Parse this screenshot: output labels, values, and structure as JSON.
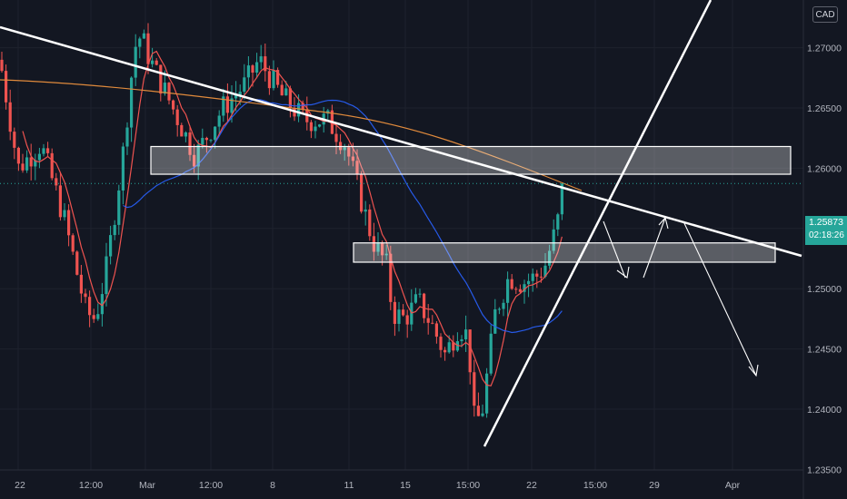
{
  "chart_data": {
    "type": "candlestick",
    "instrument_currency": "CAD",
    "y_range": [
      1.235,
      1.28
    ],
    "y_ticks": [
      "1.23500",
      "1.24000",
      "1.24500",
      "1.25000",
      "1.25500",
      "1.26000",
      "1.26500",
      "1.27000",
      "1.27500",
      "1.28000"
    ],
    "x_tick_labels": [
      "22",
      "12:00",
      "Mar",
      "12:00",
      "8",
      "11",
      "15",
      "15:00",
      "22",
      "15:00",
      "29",
      "Apr"
    ],
    "last_price": "1.25873",
    "countdown": "02:18:26",
    "key_points": {
      "start_high_close": 1.269,
      "late_feb_low": 1.2475,
      "early_mar_high": 1.2745,
      "pre_drop_level": 1.262,
      "mid_mar_low_1": 1.247,
      "mid_mar_low_2": 1.2375,
      "last_close": 1.25873
    },
    "resistance_zone": [
      1.2595,
      1.2618
    ],
    "support_zone": [
      1.2522,
      1.2538
    ],
    "colors": {
      "up": "#26a69a",
      "down": "#ef5350",
      "ma_fast": "#ef5350",
      "ma_mid": "#2962ff",
      "ma_slow": "#e08a3c",
      "background": "#131722"
    }
  }
}
